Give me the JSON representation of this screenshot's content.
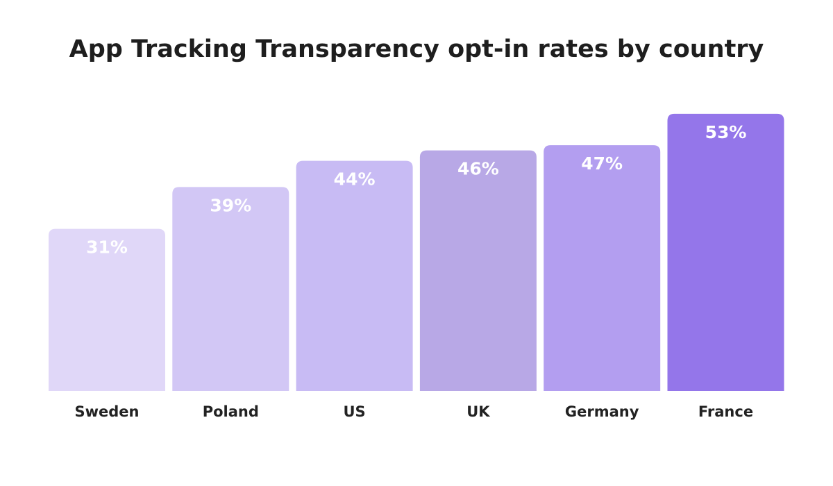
{
  "chart_data": {
    "type": "bar",
    "title": "App Tracking Transparency opt-in rates by country",
    "categories": [
      "Sweden",
      "Poland",
      "US",
      "UK",
      "Germany",
      "France"
    ],
    "values": [
      31,
      39,
      44,
      46,
      47,
      53
    ],
    "value_labels": [
      "31%",
      "39%",
      "44%",
      "46%",
      "47%",
      "53%"
    ],
    "colors": [
      "#e0d7f8",
      "#d2c7f5",
      "#c8bbf4",
      "#b8a8e6",
      "#b39ef0",
      "#9476ea"
    ]
  }
}
